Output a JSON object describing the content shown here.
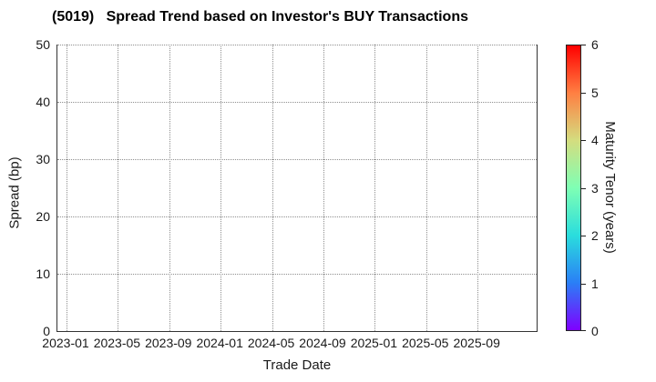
{
  "chart_data": {
    "type": "scatter",
    "title": "(5019)   Spread Trend based on Investor's BUY Transactions",
    "xlabel": "Trade Date",
    "ylabel": "Spread (bp)",
    "x_tick_labels": [
      "2023-01",
      "2023-05",
      "2023-09",
      "2024-01",
      "2024-05",
      "2024-09",
      "2025-01",
      "2025-05",
      "2025-09"
    ],
    "y_ticks": [
      0,
      10,
      20,
      30,
      40,
      50
    ],
    "ylim": [
      0,
      50
    ],
    "grid": "dotted",
    "legend": "none",
    "points": [],
    "colorbar": {
      "label": "Maturity Tenor (years)",
      "min": 0,
      "max": 6,
      "ticks": [
        0,
        1,
        2,
        3,
        4,
        5,
        6
      ],
      "colormap": "rainbow",
      "gradient_colors_bottom_to_top": [
        "#7f00ff",
        "#2a7ff6",
        "#2adddd",
        "#7fffb4",
        "#d4dd7f",
        "#ff7f42",
        "#ff0000"
      ]
    }
  }
}
